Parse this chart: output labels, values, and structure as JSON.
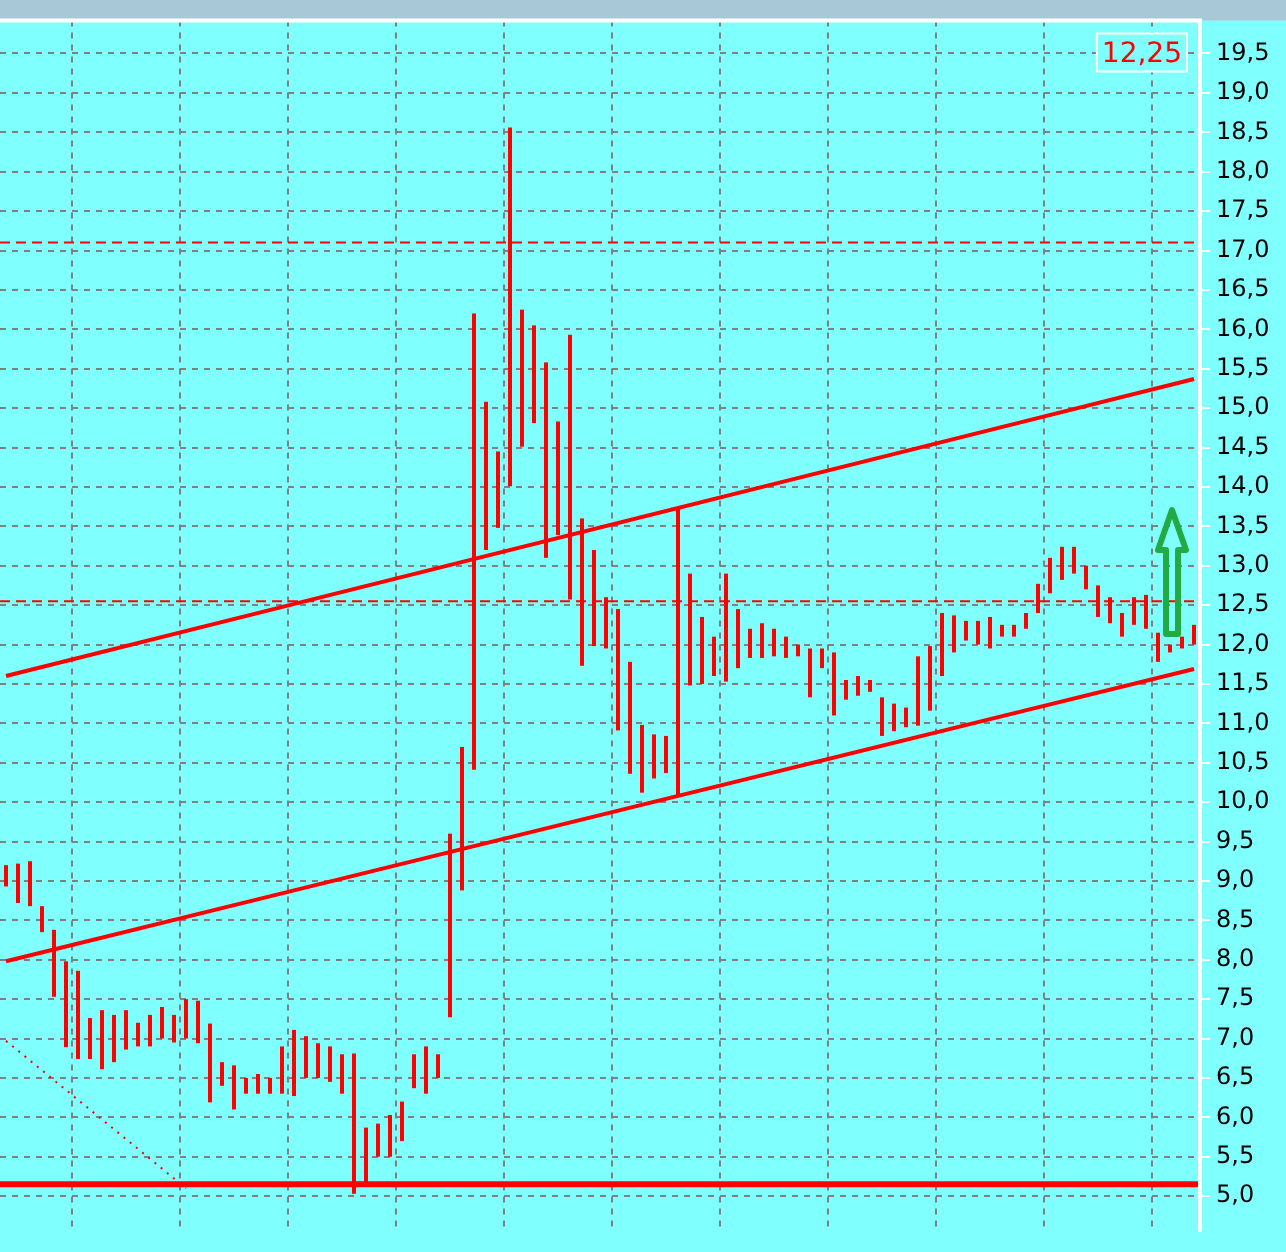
{
  "chart_data": {
    "type": "bar",
    "categories": [
      null,
      null,
      null,
      null,
      null,
      null,
      null,
      null,
      null,
      null,
      null,
      null,
      null,
      null,
      null,
      null,
      null,
      null,
      null,
      null,
      null,
      null,
      null,
      null,
      null,
      null,
      null,
      null,
      null,
      null,
      null,
      null,
      null,
      null,
      null,
      null,
      null,
      null,
      null,
      null,
      null,
      null,
      null,
      null,
      null,
      null,
      null,
      null,
      null,
      null,
      null,
      null,
      null,
      null,
      null,
      null,
      null,
      null,
      null,
      null,
      null,
      null,
      null,
      null,
      null,
      null,
      null,
      null,
      null,
      null,
      null,
      null,
      null,
      null,
      null,
      null,
      null,
      null,
      null,
      null,
      null,
      null,
      null,
      null,
      null,
      null,
      null,
      null,
      null,
      null,
      null,
      null,
      null,
      null,
      null,
      null,
      null,
      null,
      null,
      null
    ],
    "color": "#ff0000",
    "base": [
      8.93,
      8.72,
      8.68,
      8.35,
      7.53,
      6.89,
      6.74,
      6.74,
      6.61,
      6.7,
      6.86,
      6.9,
      6.9,
      7.0,
      6.95,
      7.0,
      6.94,
      6.19,
      6.4,
      6.1,
      6.3,
      6.3,
      6.3,
      6.3,
      6.27,
      6.5,
      6.5,
      6.45,
      6.3,
      5.03,
      5.13,
      5.5,
      5.5,
      5.7,
      6.37,
      6.3,
      6.5,
      7.27,
      8.88,
      10.41,
      13.2,
      13.48,
      14.01,
      14.51,
      14.81,
      13.1,
      13.39,
      12.57,
      11.73,
      11.98,
      11.95,
      10.91,
      10.36,
      10.12,
      10.3,
      10.37,
      10.09,
      11.48,
      11.5,
      11.6,
      11.53,
      11.7,
      11.83,
      11.83,
      11.85,
      11.83,
      11.85,
      11.33,
      11.7,
      11.1,
      11.3,
      11.35,
      11.4,
      10.84,
      10.9,
      10.95,
      10.97,
      11.16,
      11.6,
      11.9,
      12.05,
      12.0,
      11.95,
      12.1,
      12.1,
      12.2,
      12.4,
      12.65,
      12.82,
      12.9,
      12.7,
      12.35,
      12.27,
      12.1,
      12.25,
      12.2,
      11.78,
      11.9,
      11.95,
      12.0
    ],
    "values": [
      0.27,
      0.5,
      0.57,
      0.33,
      0.85,
      1.09,
      1.12,
      0.52,
      0.75,
      0.6,
      0.5,
      0.3,
      0.4,
      0.4,
      0.35,
      0.5,
      0.54,
      1.0,
      0.3,
      0.56,
      0.2,
      0.25,
      0.2,
      0.6,
      0.84,
      0.53,
      0.44,
      0.45,
      0.5,
      1.78,
      0.74,
      0.42,
      0.53,
      0.5,
      0.43,
      0.6,
      0.3,
      2.33,
      1.82,
      5.79,
      1.88,
      0.97,
      4.55,
      1.74,
      1.24,
      2.48,
      1.44,
      3.36,
      1.87,
      1.22,
      0.65,
      1.54,
      1.42,
      0.86,
      0.56,
      0.47,
      3.63,
      1.42,
      0.85,
      0.5,
      1.37,
      0.75,
      0.37,
      0.44,
      0.35,
      0.27,
      0.15,
      0.62,
      0.25,
      0.8,
      0.25,
      0.25,
      0.15,
      0.49,
      0.35,
      0.25,
      0.88,
      0.82,
      0.8,
      0.47,
      0.25,
      0.3,
      0.4,
      0.15,
      0.15,
      0.2,
      0.37,
      0.45,
      0.42,
      0.34,
      0.3,
      0.4,
      0.33,
      0.3,
      0.35,
      0.43,
      0.37,
      0.1,
      0.15,
      0.25
    ],
    "series": [
      {
        "type": "line",
        "color": "#ff0000",
        "line_style": "solid",
        "values": [
          11.6,
          null,
          null,
          null,
          null,
          null,
          null,
          null,
          null,
          null,
          null,
          null,
          null,
          null,
          null,
          null,
          null,
          null,
          null,
          null,
          null,
          null,
          null,
          null,
          null,
          null,
          null,
          null,
          null,
          null,
          null,
          null,
          null,
          null,
          null,
          null,
          null,
          null,
          null,
          null,
          null,
          null,
          null,
          null,
          null,
          null,
          null,
          null,
          null,
          null,
          null,
          null,
          null,
          null,
          null,
          null,
          null,
          null,
          null,
          null,
          null,
          null,
          null,
          null,
          null,
          null,
          null,
          null,
          null,
          null,
          null,
          null,
          null,
          null,
          null,
          null,
          null,
          null,
          null,
          null,
          null,
          null,
          null,
          null,
          null,
          null,
          null,
          null,
          null,
          null,
          null,
          null,
          null,
          null,
          null,
          null,
          null,
          null,
          null,
          15.37
        ]
      },
      {
        "type": "line",
        "color": "#ff0000",
        "line_style": "solid",
        "values": [
          7.98,
          null,
          null,
          null,
          null,
          null,
          null,
          null,
          null,
          null,
          null,
          null,
          null,
          null,
          null,
          null,
          null,
          null,
          null,
          null,
          null,
          null,
          null,
          null,
          null,
          null,
          null,
          null,
          null,
          null,
          null,
          null,
          null,
          null,
          null,
          null,
          null,
          null,
          null,
          null,
          null,
          null,
          null,
          null,
          null,
          null,
          null,
          null,
          null,
          null,
          null,
          null,
          null,
          null,
          null,
          null,
          null,
          null,
          null,
          null,
          null,
          null,
          null,
          null,
          null,
          null,
          null,
          null,
          null,
          null,
          null,
          null,
          null,
          null,
          null,
          null,
          null,
          null,
          null,
          null,
          null,
          null,
          null,
          null,
          null,
          null,
          null,
          null,
          null,
          null,
          null,
          null,
          null,
          null,
          null,
          null,
          null,
          null,
          null,
          11.69
        ]
      },
      {
        "type": "line",
        "color": "#ff0000",
        "line_style": "dotted",
        "values": [
          6.97,
          null,
          null,
          null,
          null,
          null,
          null,
          null,
          null,
          null,
          null,
          null,
          null,
          null,
          null,
          5.1,
          null,
          null,
          null,
          null,
          null,
          null,
          null,
          null,
          null,
          null,
          null,
          null,
          null,
          null,
          null,
          null,
          null,
          null,
          null,
          null,
          null,
          null,
          null,
          null,
          null,
          null,
          null,
          null,
          null,
          null,
          null,
          null,
          null,
          null,
          null,
          null,
          null,
          null,
          null,
          null,
          null,
          null,
          null,
          null,
          null,
          null,
          null,
          null,
          null,
          null,
          null,
          null,
          null,
          null,
          null,
          null,
          null,
          null,
          null,
          null,
          null,
          null,
          null,
          null,
          null,
          null,
          null,
          null,
          null,
          null,
          null,
          null,
          null,
          null,
          null,
          null,
          null,
          null,
          null,
          null,
          null,
          null,
          null,
          null
        ]
      }
    ],
    "ref_lines": [
      {
        "axis": "y",
        "value": 5.15,
        "color": "#ff0000",
        "line_style": "solid"
      },
      {
        "axis": "y",
        "value": 17.1,
        "color": "#ff0000",
        "line_style": "dashed"
      },
      {
        "axis": "y",
        "value": 12.55,
        "color": "#ff0000",
        "line_style": "dashed"
      }
    ],
    "annotations": [
      "12,25"
    ],
    "ylim": [
      4.55,
      19.92
    ],
    "yticks": [
      {
        "value": 5,
        "label": "5,0"
      },
      {
        "value": 5.5,
        "label": "5,5"
      },
      {
        "value": 6,
        "label": "6,0"
      },
      {
        "value": 6.5,
        "label": "6,5"
      },
      {
        "value": 7,
        "label": "7,0"
      },
      {
        "value": 7.5,
        "label": "7,5"
      },
      {
        "value": 8,
        "label": "8,0"
      },
      {
        "value": 8.5,
        "label": "8,5"
      },
      {
        "value": 9,
        "label": "9,0"
      },
      {
        "value": 9.5,
        "label": "9,5"
      },
      {
        "value": 10,
        "label": "10,0"
      },
      {
        "value": 10.5,
        "label": "10,5"
      },
      {
        "value": 11,
        "label": "11,0"
      },
      {
        "value": 11.5,
        "label": "11,5"
      },
      {
        "value": 12,
        "label": "12,0"
      },
      {
        "value": 12.5,
        "label": "12,5"
      },
      {
        "value": 13,
        "label": "13,0"
      },
      {
        "value": 13.5,
        "label": "13,5"
      },
      {
        "value": 14,
        "label": "14,0"
      },
      {
        "value": 14.5,
        "label": "14,5"
      },
      {
        "value": 15,
        "label": "15,0"
      },
      {
        "value": 15.5,
        "label": "15,5"
      },
      {
        "value": 16,
        "label": "16,0"
      },
      {
        "value": 16.5,
        "label": "16,5"
      },
      {
        "value": 17,
        "label": "17,0"
      },
      {
        "value": 17.5,
        "label": "17,5"
      },
      {
        "value": 18,
        "label": "18,0"
      },
      {
        "value": 18.5,
        "label": "18,5"
      },
      {
        "value": 19,
        "label": "19,0"
      },
      {
        "value": 19.5,
        "label": "19,5"
      }
    ],
    "grid": true,
    "legend": false,
    "tick_labels": "y"
  }
}
